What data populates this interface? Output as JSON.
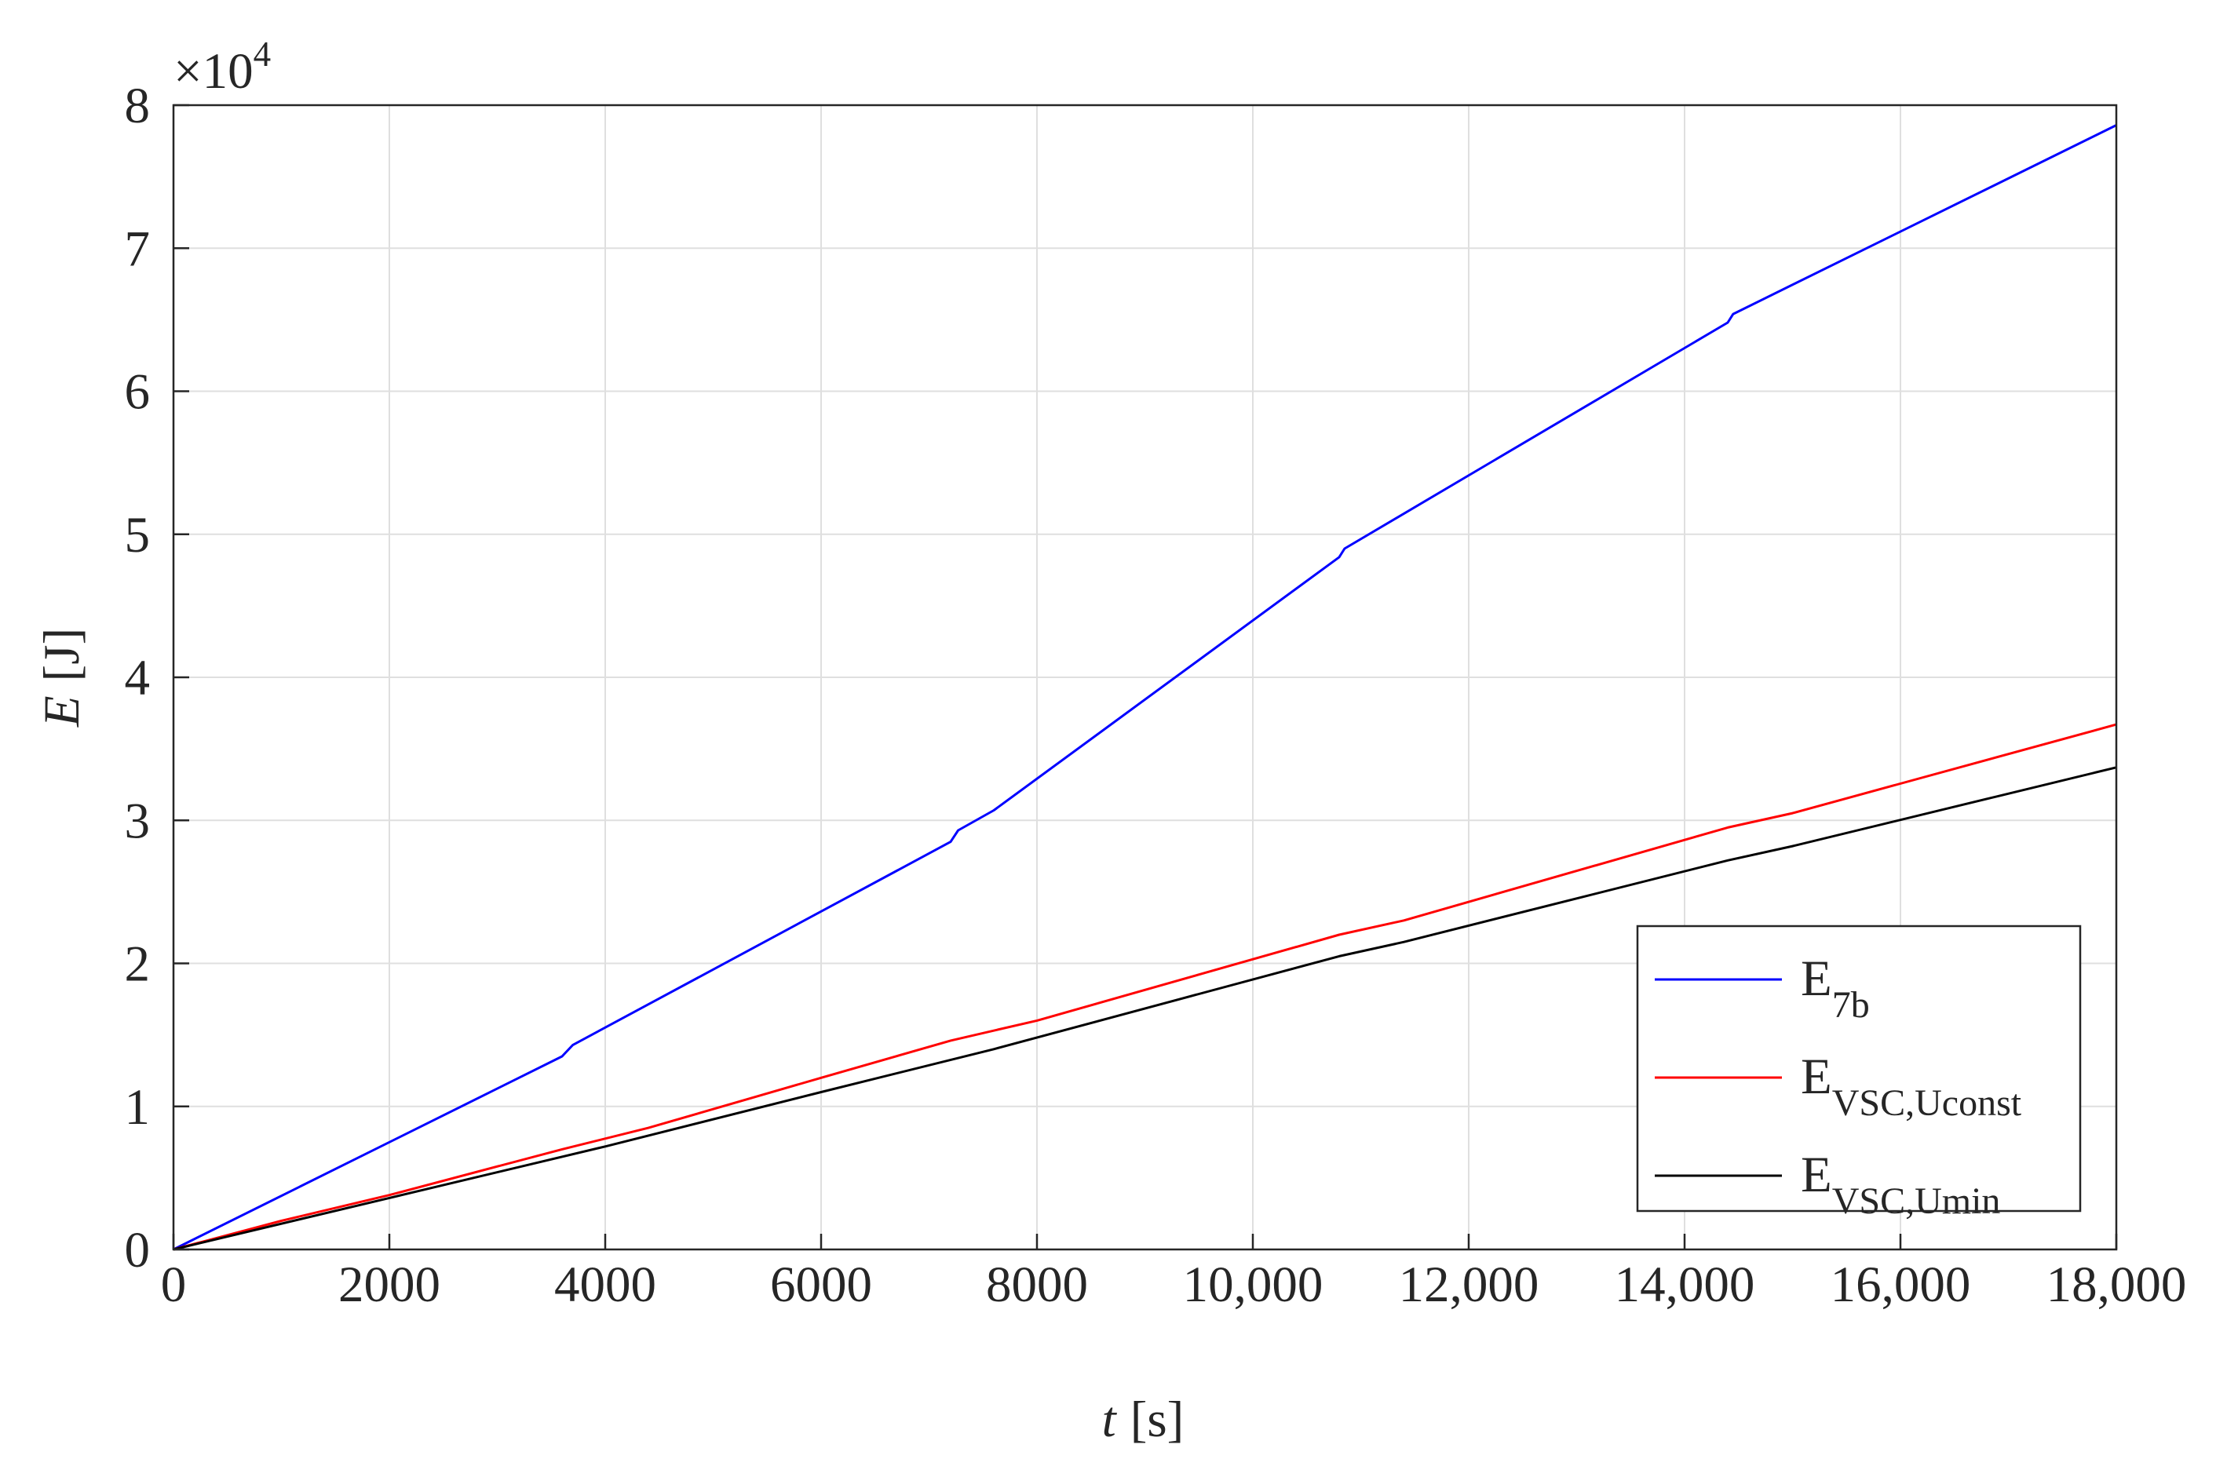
{
  "chart_data": {
    "type": "line",
    "xlabel_symbol": "t",
    "xlabel_unit": "[s]",
    "ylabel_symbol": "E",
    "ylabel_unit": "[J]",
    "y_multiplier": {
      "base": "×10",
      "exponent": "4"
    },
    "xlim": [
      0,
      18000
    ],
    "xticks": [
      0,
      2000,
      4000,
      6000,
      8000,
      {
        "value": 10000,
        "label": "10,000"
      },
      {
        "value": 12000,
        "label": "12,000"
      },
      {
        "value": 14000,
        "label": "14,000"
      },
      {
        "value": 16000,
        "label": "16,000"
      },
      {
        "value": 18000,
        "label": "18,000"
      }
    ],
    "ylim": [
      0,
      8
    ],
    "yticks": [
      0,
      1,
      2,
      3,
      4,
      5,
      6,
      7,
      8
    ],
    "grid": true,
    "legend": "lower right",
    "series": [
      {
        "name": "E",
        "subscript": "7b",
        "color": "#0000ff",
        "x": [
          0,
          3600,
          3700,
          7200,
          7270,
          7600,
          10800,
          10850,
          14400,
          14450,
          18000
        ],
        "values": [
          0,
          1.35,
          1.43,
          2.85,
          2.93,
          3.07,
          4.84,
          4.9,
          6.48,
          6.54,
          7.86
        ]
      },
      {
        "name": "E",
        "subscript": "VSC,Uconst",
        "color": "#ff0000",
        "x": [
          0,
          1000,
          2000,
          3600,
          4400,
          6000,
          7200,
          8000,
          10800,
          11400,
          14400,
          15000,
          18000
        ],
        "values": [
          0,
          0.2,
          0.38,
          0.7,
          0.85,
          1.2,
          1.46,
          1.6,
          2.2,
          2.3,
          2.95,
          3.05,
          3.67
        ]
      },
      {
        "name": "E",
        "subscript": "VSC,Umin",
        "color": "#000000",
        "x": [
          0,
          2000,
          4000,
          6000,
          7600,
          10800,
          11400,
          14400,
          15000,
          18000
        ],
        "values": [
          0,
          0.36,
          0.72,
          1.1,
          1.4,
          2.05,
          2.15,
          2.72,
          2.82,
          3.37
        ]
      }
    ]
  }
}
